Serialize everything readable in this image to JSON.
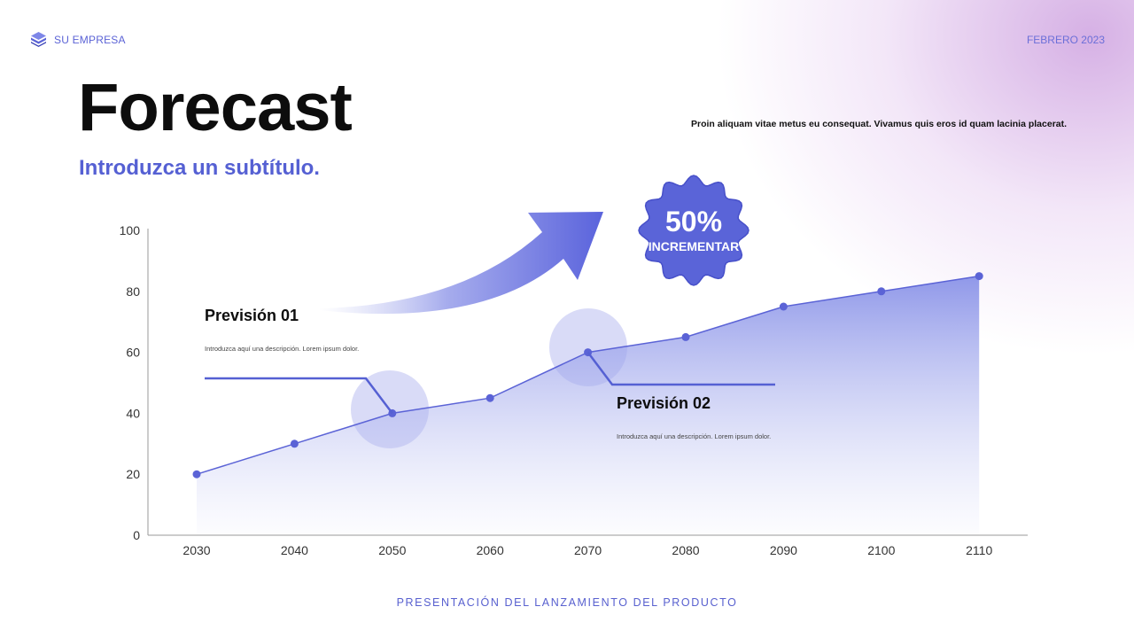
{
  "header": {
    "company": "SU EMPRESA",
    "date": "FEBRERO 2023",
    "logo_icon": "stacked-layers-icon"
  },
  "title": "Forecast",
  "subtitle": "Introduzca un subtítulo.",
  "description": "Proin aliquam vitae metus eu consequat. Vivamus quis eros id quam lacinia placerat.",
  "badge": {
    "value": "50%",
    "label": "INCREMENTAR"
  },
  "annotations": [
    {
      "title": "Previsión 01",
      "text": "Introduzca aquí una descripción. Lorem ipsum dolor.",
      "x": 2050
    },
    {
      "title": "Previsión 02",
      "text": "Introduzca aquí una descripción. Lorem ipsum dolor.",
      "x": 2070
    }
  ],
  "footer": "PRESENTACIÓN DEL LANZAMIENTO DEL PRODUCTO",
  "colors": {
    "accent": "#5560d3",
    "line": "#5b63d6",
    "fill": "#a9b0ee",
    "text": "#0d0d0d"
  },
  "chart_data": {
    "type": "area",
    "x": [
      2030,
      2040,
      2050,
      2060,
      2070,
      2080,
      2090,
      2100,
      2110
    ],
    "series": [
      {
        "values": [
          20,
          30,
          40,
          45,
          60,
          65,
          75,
          80,
          85
        ]
      }
    ],
    "ylim": [
      0,
      100
    ],
    "yticks": [
      0,
      20,
      40,
      60,
      80,
      100
    ],
    "grid": false
  }
}
